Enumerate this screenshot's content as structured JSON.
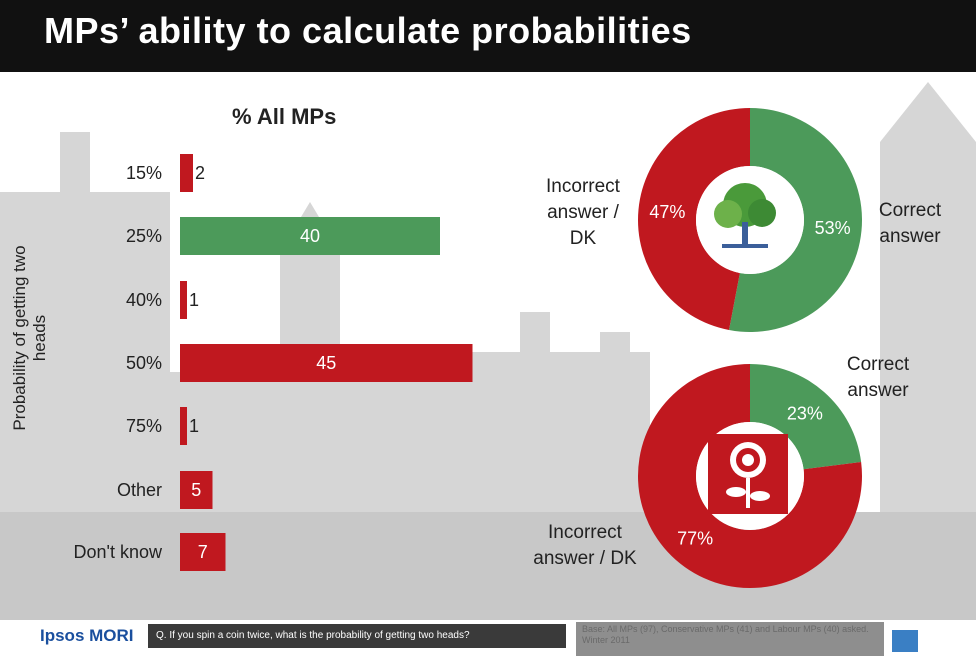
{
  "title": "MPs’ ability to calculate probabilities",
  "chart_data": [
    {
      "type": "bar",
      "title": "% All MPs",
      "ylabel": "Probability of getting two heads",
      "categories": [
        "15%",
        "25%",
        "40%",
        "50%",
        "75%",
        "Other",
        "Don't know"
      ],
      "values": [
        2,
        40,
        1,
        45,
        1,
        5,
        7
      ],
      "value_labels": [
        "2",
        "40",
        "1",
        "45",
        "1",
        "5",
        "7"
      ],
      "bar_colors": [
        "#c0181f",
        "#4c9a5a",
        "#c0181f",
        "#c0181f",
        "#c0181f",
        "#c0181f",
        "#c0181f"
      ],
      "xlim": [
        0,
        45
      ]
    },
    {
      "type": "pie",
      "group_icon": "conservative-tree-icon",
      "slices": [
        {
          "label": "Correct answer",
          "value": 53,
          "pct_label": "53%",
          "color": "#4c9a5a"
        },
        {
          "label": "Incorrect answer / DK",
          "value": 47,
          "pct_label": "47%",
          "color": "#c0181f"
        }
      ],
      "side_labels": {
        "correct": [
          "Correct",
          "answer"
        ],
        "incorrect": [
          "Incorrect",
          "answer /",
          "DK"
        ]
      }
    },
    {
      "type": "pie",
      "group_icon": "labour-rose-icon",
      "slices": [
        {
          "label": "Correct answer",
          "value": 23,
          "pct_label": "23%",
          "color": "#4c9a5a"
        },
        {
          "label": "Incorrect answer / DK",
          "value": 77,
          "pct_label": "77%",
          "color": "#c0181f"
        }
      ],
      "side_labels": {
        "correct": [
          "Correct",
          "answer"
        ],
        "incorrect": [
          "Incorrect",
          "answer / DK"
        ]
      }
    }
  ],
  "footer": {
    "brand": "Ipsos MORI",
    "question": "Q. If you spin a coin twice, what is the probability of getting two heads?",
    "base": "Base: All MPs (97), Conservative MPs (41) and Labour MPs (40) asked. Winter 2011",
    "logo_icon": "ipsos-logo-icon"
  }
}
